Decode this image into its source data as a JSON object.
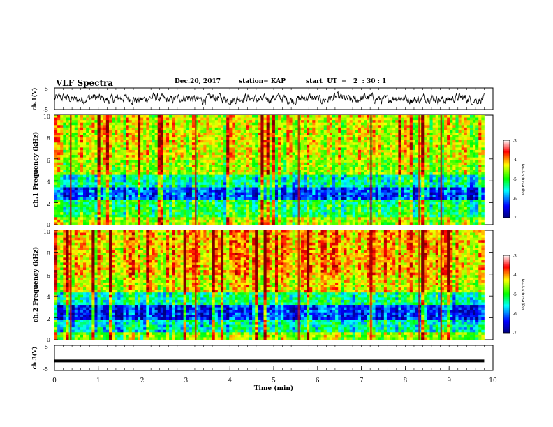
{
  "header": {
    "title": "VLF Spectra",
    "date": "Dec.20, 2017",
    "station": "station= KAP",
    "start_ut": "start  UT  =   2  : 30 : 1"
  },
  "chart_data": [
    {
      "type": "line",
      "panel": "ch1-waveform",
      "ylabel": "ch.1(V)",
      "ylim": [
        -5,
        5
      ],
      "y_ticks": [
        "5",
        "-5"
      ],
      "xlim": [
        0,
        10
      ],
      "note_trace": "noisy waveform oscillating roughly between -3 and 3 V from 0 to 9.8 min"
    },
    {
      "type": "heatmap",
      "panel": "ch1-spectrogram",
      "ylabel": "ch.1 Frequency (kHz)",
      "ylim": [
        0,
        10
      ],
      "y_ticks": [
        "0",
        "2",
        "4",
        "6",
        "8",
        "10"
      ],
      "xlim": [
        0,
        9.8
      ],
      "colorbar": {
        "label": "log(PSD)(V²/Hz)",
        "range": [
          -7,
          -3
        ],
        "ticks": [
          "-3",
          "-4",
          "-5",
          "-6",
          "-7"
        ]
      }
    },
    {
      "type": "heatmap",
      "panel": "ch2-spectrogram",
      "ylabel": "ch.2 Frequency (kHz)",
      "ylim": [
        0,
        10
      ],
      "y_ticks": [
        "0",
        "2",
        "4",
        "6",
        "8",
        "10"
      ],
      "xlim": [
        0,
        9.8
      ],
      "colorbar": {
        "label": "log(PSD)(V²/Hz)",
        "range": [
          -7,
          -3
        ],
        "ticks": [
          "-3",
          "-4",
          "-5",
          "-6",
          "-7"
        ]
      }
    },
    {
      "type": "line",
      "panel": "ch3-waveform",
      "ylabel": "ch.3(V)",
      "ylim": [
        -5,
        5
      ],
      "y_ticks": [
        "5",
        "-5"
      ],
      "xlim": [
        0,
        10
      ],
      "x": [
        0,
        9.8
      ],
      "y": [
        -1.2,
        -1.2
      ]
    }
  ],
  "x_axis": {
    "label": "Time  (min)",
    "ticks": [
      "0",
      "1",
      "2",
      "3",
      "4",
      "5",
      "6",
      "7",
      "8",
      "9",
      "10"
    ]
  },
  "colors": {
    "scale": [
      "#000080",
      "#0000ff",
      "#00ffff",
      "#00ff00",
      "#ffff00",
      "#ff0000",
      "#800000"
    ]
  }
}
